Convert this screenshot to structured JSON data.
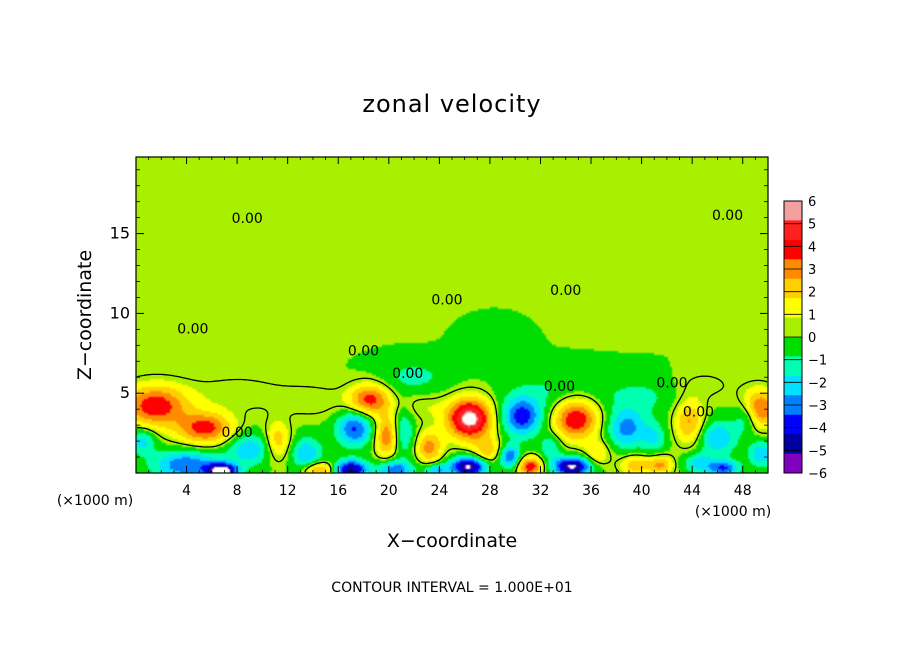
{
  "chart_data": {
    "type": "heatmap",
    "title": "zonal velocity",
    "xlabel": "X−coordinate",
    "ylabel": "Z−coordinate",
    "x_unit_left": "(×1000 m)",
    "x_unit_right": "(×1000 m)",
    "xlim": [
      0,
      50
    ],
    "ylim": [
      0,
      19.8
    ],
    "x_ticks": [
      4,
      8,
      12,
      16,
      20,
      24,
      28,
      32,
      36,
      40,
      44,
      48
    ],
    "y_ticks": [
      5,
      10,
      15
    ],
    "footer": "CONTOUR INTERVAL = 1.000E+01",
    "colorbar": {
      "levels": [
        6,
        5,
        4,
        3,
        2,
        1,
        0,
        -1,
        -2,
        -3,
        -4,
        -5,
        -6
      ],
      "labels": [
        "6",
        "5",
        "4",
        "3",
        "2",
        "1",
        "0",
        "−1",
        "−2",
        "−3",
        "−4",
        "−5",
        "−6"
      ],
      "colors": [
        "#f2a0a0",
        "#ff2020",
        "#ff0000",
        "#ff8c00",
        "#ffd000",
        "#ffff00",
        "#a8f000",
        "#00dd00",
        "#00ffb0",
        "#00e0ff",
        "#0080ff",
        "#0000ff",
        "#0000a0",
        "#8000c0"
      ]
    },
    "contour_labels": [
      {
        "text": "0.00",
        "x": 8.8,
        "z": 15.9
      },
      {
        "text": "0.00",
        "x": 46.8,
        "z": 16.1
      },
      {
        "text": "0.00",
        "x": 24.6,
        "z": 10.8
      },
      {
        "text": "0.00",
        "x": 34.0,
        "z": 11.4
      },
      {
        "text": "0.00",
        "x": 18.0,
        "z": 7.6
      },
      {
        "text": "0.00",
        "x": 21.5,
        "z": 6.2
      },
      {
        "text": "0.00",
        "x": 33.5,
        "z": 5.4
      },
      {
        "text": "0.00",
        "x": 42.4,
        "z": 5.6
      },
      {
        "text": "0.00",
        "x": 44.5,
        "z": 3.8
      },
      {
        "text": "0.00",
        "x": 8.0,
        "z": 2.5
      },
      {
        "text": "0.00",
        "x": 4.5,
        "z": 9.0
      }
    ],
    "velocity_features": [
      {
        "x": 1.5,
        "z": 4.2,
        "sx": 2.6,
        "sz": 1.3,
        "a": 4.8
      },
      {
        "x": 5.5,
        "z": 2.8,
        "sx": 2.2,
        "sz": 1.0,
        "a": 4.5
      },
      {
        "x": 4.0,
        "z": 0.5,
        "sx": 2.6,
        "sz": 0.9,
        "a": -4.0
      },
      {
        "x": 6.8,
        "z": 0.1,
        "sx": 1.2,
        "sz": 0.5,
        "a": -7.0
      },
      {
        "x": 0.5,
        "z": 2.0,
        "sx": 1.0,
        "sz": 0.8,
        "a": -2.5
      },
      {
        "x": 9.0,
        "z": 1.5,
        "sx": 1.8,
        "sz": 1.0,
        "a": -2.8
      },
      {
        "x": 11.2,
        "z": 2.0,
        "sx": 1.0,
        "sz": 1.2,
        "a": 2.8
      },
      {
        "x": 13.5,
        "z": 1.2,
        "sx": 1.2,
        "sz": 1.0,
        "a": -3.0
      },
      {
        "x": 14.5,
        "z": 0.2,
        "sx": 1.2,
        "sz": 0.5,
        "a": 3.5
      },
      {
        "x": 17.0,
        "z": 0.2,
        "sx": 1.3,
        "sz": 0.6,
        "a": -6.0
      },
      {
        "x": 18.5,
        "z": 4.6,
        "sx": 1.6,
        "sz": 1.0,
        "a": 4.5
      },
      {
        "x": 17.3,
        "z": 2.8,
        "sx": 1.4,
        "sz": 1.1,
        "a": -4.2
      },
      {
        "x": 19.8,
        "z": 2.3,
        "sx": 0.9,
        "sz": 1.3,
        "a": 3.8
      },
      {
        "x": 21.2,
        "z": 2.6,
        "sx": 0.8,
        "sz": 1.5,
        "a": -2.2
      },
      {
        "x": 20.5,
        "z": 0.2,
        "sx": 1.4,
        "sz": 0.6,
        "a": -3.8
      },
      {
        "x": 23.2,
        "z": 1.6,
        "sx": 1.0,
        "sz": 1.0,
        "a": 3.5
      },
      {
        "x": 23.8,
        "z": 0.2,
        "sx": 1.0,
        "sz": 0.4,
        "a": -3.0
      },
      {
        "x": 26.4,
        "z": 3.4,
        "sx": 1.8,
        "sz": 1.3,
        "a": 6.8
      },
      {
        "x": 26.3,
        "z": 0.4,
        "sx": 1.4,
        "sz": 0.6,
        "a": -6.5
      },
      {
        "x": 27.8,
        "z": 1.4,
        "sx": 1.0,
        "sz": 0.8,
        "a": 2.5
      },
      {
        "x": 30.5,
        "z": 3.5,
        "sx": 1.6,
        "sz": 1.2,
        "a": -4.5
      },
      {
        "x": 29.6,
        "z": 1.0,
        "sx": 0.8,
        "sz": 0.7,
        "a": -4.0
      },
      {
        "x": 31.2,
        "z": 0.4,
        "sx": 1.0,
        "sz": 0.6,
        "a": 4.8
      },
      {
        "x": 34.8,
        "z": 3.4,
        "sx": 1.8,
        "sz": 1.3,
        "a": 5.2
      },
      {
        "x": 34.5,
        "z": 0.4,
        "sx": 1.5,
        "sz": 0.6,
        "a": -6.5
      },
      {
        "x": 32.8,
        "z": 1.6,
        "sx": 0.8,
        "sz": 0.8,
        "a": -2.0
      },
      {
        "x": 36.5,
        "z": 1.2,
        "sx": 1.0,
        "sz": 0.8,
        "a": 2.0
      },
      {
        "x": 38.8,
        "z": 2.8,
        "sx": 1.5,
        "sz": 1.2,
        "a": -3.5
      },
      {
        "x": 39.5,
        "z": 0.5,
        "sx": 1.2,
        "sz": 0.6,
        "a": 2.8
      },
      {
        "x": 41.5,
        "z": 0.5,
        "sx": 1.0,
        "sz": 0.6,
        "a": 3.2
      },
      {
        "x": 41.0,
        "z": 2.2,
        "sx": 1.0,
        "sz": 1.0,
        "a": -2.0
      },
      {
        "x": 43.8,
        "z": 3.2,
        "sx": 1.2,
        "sz": 1.4,
        "a": 3.2
      },
      {
        "x": 46.0,
        "z": 2.2,
        "sx": 1.5,
        "sz": 1.1,
        "a": -3.0
      },
      {
        "x": 44.5,
        "z": 0.6,
        "sx": 1.2,
        "sz": 0.6,
        "a": -2.5
      },
      {
        "x": 46.5,
        "z": 0.3,
        "sx": 1.2,
        "sz": 0.5,
        "a": -4.0
      },
      {
        "x": 49.3,
        "z": 4.0,
        "sx": 1.4,
        "sz": 1.2,
        "a": 4.5
      },
      {
        "x": 48.3,
        "z": 3.5,
        "sx": 1.0,
        "sz": 1.0,
        "a": -2.5
      },
      {
        "x": 49.5,
        "z": 1.2,
        "sx": 1.0,
        "sz": 0.8,
        "a": -3.0
      },
      {
        "x": 22.0,
        "z": 6.0,
        "sx": 3.0,
        "sz": 1.2,
        "a": -1.3
      },
      {
        "x": 33.0,
        "z": 5.0,
        "sx": 4.0,
        "sz": 1.4,
        "a": -1.1
      },
      {
        "x": 40.0,
        "z": 4.8,
        "sx": 3.0,
        "sz": 1.2,
        "a": -1.2
      },
      {
        "x": 28.0,
        "z": 9.0,
        "sx": 3.0,
        "sz": 1.6,
        "a": -0.4
      },
      {
        "x": 8.0,
        "z": 5.0,
        "sx": 4.0,
        "sz": 1.2,
        "a": 0.8
      },
      {
        "x": 14.0,
        "z": 4.5,
        "sx": 3.0,
        "sz": 1.0,
        "a": 0.9
      },
      {
        "x": 22.5,
        "z": 4.2,
        "sx": 2.0,
        "sz": 0.9,
        "a": 1.0
      },
      {
        "x": 45.0,
        "z": 5.5,
        "sx": 2.5,
        "sz": 1.0,
        "a": 0.7
      },
      {
        "x": 25.0,
        "z": 12.0,
        "sx": 9.0,
        "sz": 3.0,
        "a": 0.3
      },
      {
        "x": 10.0,
        "z": 11.0,
        "sx": 6.0,
        "sz": 3.0,
        "a": 0.35
      },
      {
        "x": 40.0,
        "z": 13.0,
        "sx": 6.0,
        "sz": 3.0,
        "a": 0.2
      }
    ]
  }
}
